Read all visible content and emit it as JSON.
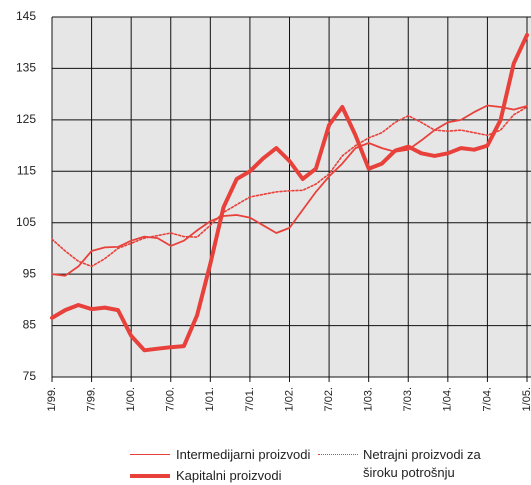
{
  "chart_data": {
    "type": "line",
    "categories": [
      "1/99.",
      null,
      null,
      "7/99.",
      null,
      null,
      "1/00.",
      null,
      null,
      "7/00.",
      null,
      null,
      "1/01.",
      null,
      null,
      "7/01.",
      null,
      null,
      "1/02.",
      null,
      null,
      "7/02.",
      null,
      null,
      "1/03.",
      null,
      null,
      "7/03.",
      null,
      null,
      "1/04.",
      null,
      null,
      "7/04.",
      null,
      null,
      "1/05."
    ],
    "series": [
      {
        "name": "Intermedijarni proizvodi",
        "color": "#e8413b",
        "values": [
          95,
          94.7,
          96.5,
          99.5,
          100.2,
          100.3,
          101.5,
          102.3,
          102,
          100.5,
          101.5,
          103.5,
          105.3,
          106.3,
          106.5,
          106,
          104.5,
          103,
          104,
          107.5,
          111,
          114,
          116.5,
          119.5,
          120.5,
          119.5,
          118.8,
          119.2,
          121,
          123,
          124.5,
          125,
          126.5,
          127.8,
          127.5,
          127,
          127.7
        ]
      },
      {
        "name": "Kapitalni proizvodi",
        "color": "#e8413b",
        "values": [
          86.5,
          88,
          89,
          88.2,
          88.5,
          88,
          83,
          80.2,
          80.5,
          80.8,
          81,
          87,
          97,
          108,
          113.5,
          115,
          117.5,
          119.5,
          117,
          113.5,
          115.5,
          124,
          127.5,
          122,
          115.5,
          116.5,
          119,
          119.8,
          118.5,
          118,
          118.5,
          119.5,
          119.2,
          120,
          125,
          136,
          141.5
        ]
      },
      {
        "name": "Netrajni proizvodi za široku potrošnju",
        "color": "#e8413b",
        "values": [
          101.8,
          99.5,
          97.5,
          96.5,
          98,
          100,
          101,
          102,
          102.5,
          103,
          102.3,
          102.2,
          104.5,
          107,
          108.5,
          110,
          110.5,
          111,
          111.2,
          111.3,
          112.5,
          114.5,
          118,
          120,
          121.5,
          122.5,
          124.5,
          125.8,
          124.5,
          123,
          122.8,
          123,
          122.5,
          122,
          123,
          126,
          127.5
        ]
      }
    ],
    "ylim": [
      75,
      145
    ],
    "yticks": [
      75,
      85,
      95,
      105,
      115,
      125,
      135,
      145
    ],
    "grid": true
  }
}
